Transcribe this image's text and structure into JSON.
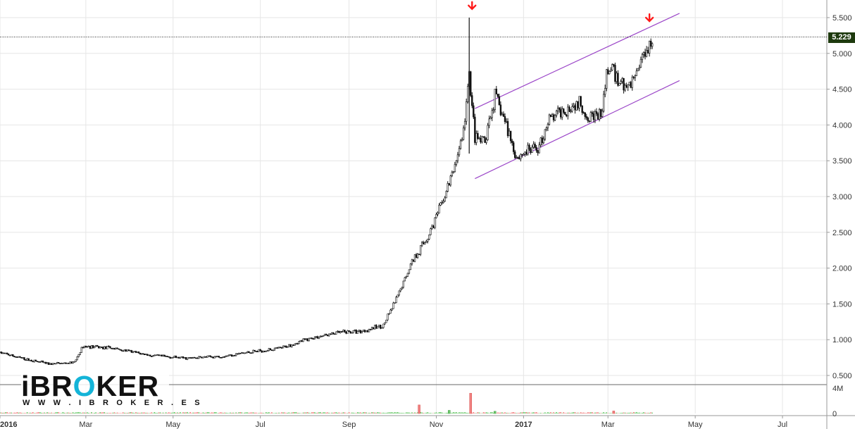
{
  "brand": {
    "logo_text": "iBROKER",
    "url_text": "W W W . I B R O K E R . E S",
    "accent": "#14b4d8"
  },
  "current_price_label": "5.229",
  "colors": {
    "up": "#ffffff",
    "down": "#111111",
    "wick": "#111111",
    "channel": "#9b46c8",
    "arrow": "#ff1a1a",
    "grid": "#e6e6e6",
    "vol_up": "#6fc96f",
    "vol_down": "#f08080",
    "badge": "#1e3a0e"
  },
  "chart_data": {
    "type": "candlestick",
    "y_ticks": [
      "5.500",
      "5.000",
      "4.500",
      "4.000",
      "3.500",
      "3.000",
      "2.500",
      "2.000",
      "1.500",
      "1.000",
      "0.500"
    ],
    "y_tick_values": [
      5500,
      5000,
      4500,
      4000,
      3500,
      3000,
      2500,
      2000,
      1500,
      1000,
      500
    ],
    "ylim": [
      400,
      5650
    ],
    "x_ticks": [
      "2016",
      "Mar",
      "May",
      "Jul",
      "Sep",
      "Nov",
      "2017",
      "Mar",
      "May",
      "Jul"
    ],
    "x_tick_dates": [
      "2016-01-01",
      "2016-03-01",
      "2016-05-01",
      "2016-07-01",
      "2016-09-01",
      "2016-11-01",
      "2017-01-01",
      "2017-03-01",
      "2017-05-01",
      "2017-07-01"
    ],
    "x_tick_bold": [
      "2016",
      "2017"
    ],
    "xlim": [
      "2016-01-01",
      "2017-08-01"
    ],
    "last_close": 5229,
    "close_path": [
      [
        "2016-01-01",
        820
      ],
      [
        "2016-01-20",
        720
      ],
      [
        "2016-02-05",
        660
      ],
      [
        "2016-02-22",
        680
      ],
      [
        "2016-02-28",
        910
      ],
      [
        "2016-03-20",
        880
      ],
      [
        "2016-04-15",
        780
      ],
      [
        "2016-05-10",
        740
      ],
      [
        "2016-06-05",
        770
      ],
      [
        "2016-06-25",
        830
      ],
      [
        "2016-07-15",
        880
      ],
      [
        "2016-08-05",
        1020
      ],
      [
        "2016-08-25",
        1100
      ],
      [
        "2016-09-10",
        1120
      ],
      [
        "2016-09-25",
        1200
      ],
      [
        "2016-10-05",
        1600
      ],
      [
        "2016-10-15",
        2100
      ],
      [
        "2016-10-25",
        2400
      ],
      [
        "2016-11-05",
        2900
      ],
      [
        "2016-11-12",
        3300
      ],
      [
        "2016-11-20",
        3900
      ],
      [
        "2016-11-24",
        4700
      ],
      [
        "2016-11-25",
        4500
      ],
      [
        "2016-11-28",
        3800
      ],
      [
        "2016-12-05",
        3750
      ],
      [
        "2016-12-12",
        4400
      ],
      [
        "2016-12-20",
        4000
      ],
      [
        "2016-12-27",
        3550
      ],
      [
        "2017-01-05",
        3650
      ],
      [
        "2017-01-12",
        3700
      ],
      [
        "2017-01-18",
        4050
      ],
      [
        "2017-01-28",
        4200
      ],
      [
        "2017-02-08",
        4300
      ],
      [
        "2017-02-13",
        4180
      ],
      [
        "2017-02-24",
        4100
      ],
      [
        "2017-03-01",
        4800
      ],
      [
        "2017-03-08",
        4650
      ],
      [
        "2017-03-15",
        4500
      ],
      [
        "2017-03-20",
        4700
      ],
      [
        "2017-03-26",
        5000
      ],
      [
        "2017-04-01",
        5229
      ]
    ],
    "volume_ticks": [
      "4M",
      "0"
    ],
    "volume_spikes": [
      {
        "date": "2016-10-20",
        "value": 1.35,
        "dir": "down"
      },
      {
        "date": "2016-11-25",
        "value": 3.2,
        "dir": "down"
      },
      {
        "date": "2016-11-10",
        "value": 0.5,
        "dir": "up"
      },
      {
        "date": "2016-12-12",
        "value": 0.35,
        "dir": "up"
      },
      {
        "date": "2017-03-05",
        "value": 0.4,
        "dir": "down"
      }
    ],
    "volume_ylim": [
      0,
      4.5
    ],
    "channel": {
      "upper": [
        [
          "2016-11-28",
          4230
        ],
        [
          "2017-04-20",
          5560
        ]
      ],
      "lower": [
        [
          "2016-11-28",
          3250
        ],
        [
          "2017-04-20",
          4620
        ]
      ]
    },
    "arrows": [
      {
        "date": "2016-11-26",
        "value": 5630
      },
      {
        "date": "2017-03-30",
        "value": 5460
      }
    ],
    "hline": 5229
  }
}
